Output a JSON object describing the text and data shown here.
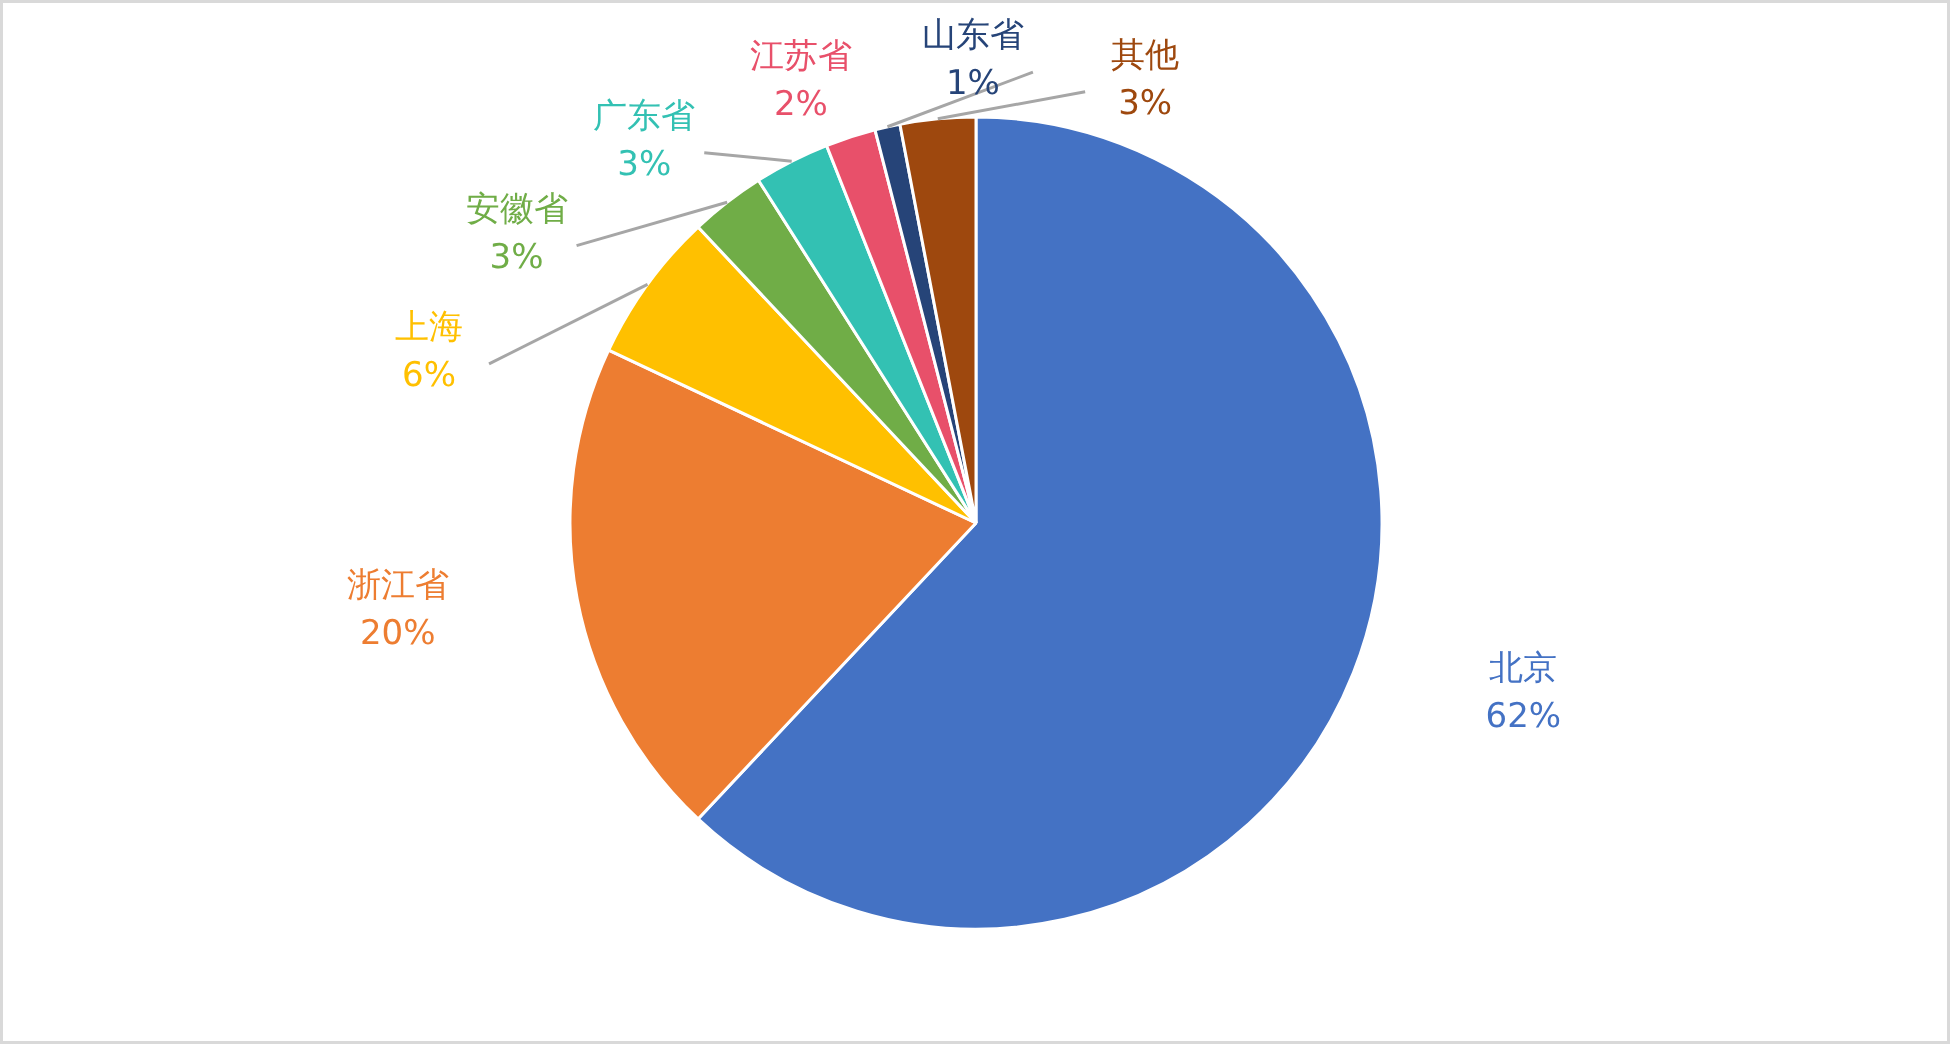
{
  "chart_data": {
    "type": "pie",
    "categories": [
      "北京",
      "浙江省",
      "上海",
      "安徽省",
      "广东省",
      "江苏省",
      "山东省",
      "其他"
    ],
    "values": [
      62,
      20,
      6,
      3,
      3,
      2,
      1,
      3
    ],
    "colors": [
      "#4472c4",
      "#ed7d31",
      "#ffc000",
      "#70ad47",
      "#33c1b3",
      "#e8506a",
      "#264478",
      "#9e480e"
    ],
    "value_labels": [
      "62%",
      "20%",
      "6%",
      "3%",
      "3%",
      "2%",
      "1%",
      "3%"
    ]
  }
}
